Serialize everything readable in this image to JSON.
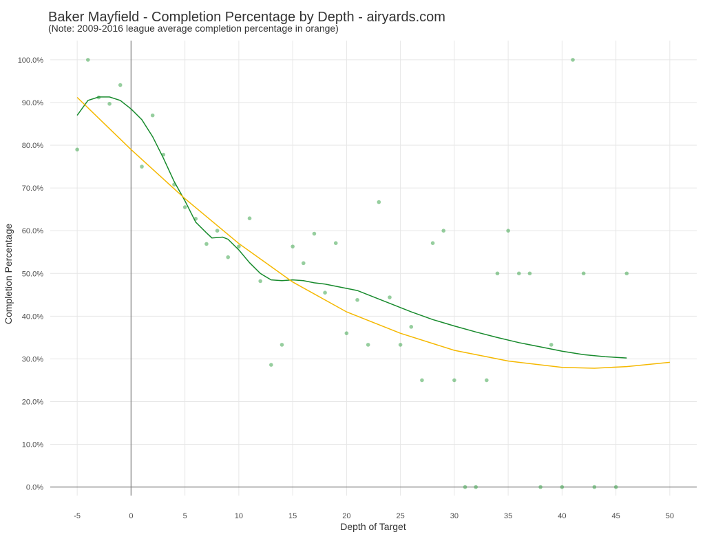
{
  "chart_data": {
    "type": "scatter",
    "title": "Baker Mayfield - Completion Percentage by Depth - airyards.com",
    "subtitle": "(Note: 2009-2016 league average completion percentage in orange)",
    "x_label": "Depth of Target",
    "y_label": "Completion Percentage",
    "xlim": [
      -7.5,
      52.5
    ],
    "ylim": [
      -2,
      104.5
    ],
    "xticks": [
      -5,
      0,
      5,
      10,
      15,
      20,
      25,
      30,
      35,
      40,
      45,
      50
    ],
    "yticks": [
      {
        "value": 0,
        "label": "0.0%"
      },
      {
        "value": 10,
        "label": "10.0%"
      },
      {
        "value": 20,
        "label": "20.0%"
      },
      {
        "value": 30,
        "label": "30.0%"
      },
      {
        "value": 40,
        "label": "40.0%"
      },
      {
        "value": 50,
        "label": "50.0%"
      },
      {
        "value": 60,
        "label": "60.0%"
      },
      {
        "value": 70,
        "label": "70.0%"
      },
      {
        "value": 80,
        "label": "80.0%"
      },
      {
        "value": 90,
        "label": "90.0%"
      },
      {
        "value": 100,
        "label": "100.0%"
      }
    ],
    "grid": true,
    "vline": 0,
    "hline": 0,
    "series": [
      {
        "kind": "points",
        "color": "#2e9e3e",
        "x": [
          -5,
          -4,
          -3,
          -2,
          -1,
          1,
          2,
          3,
          4,
          5,
          6,
          7,
          8,
          9,
          10,
          11,
          12,
          13,
          14,
          15,
          16,
          17,
          18,
          19,
          20,
          21,
          22,
          23,
          24,
          25,
          26,
          27,
          28,
          29,
          30,
          31,
          32,
          33,
          34,
          35,
          36,
          37,
          38,
          39,
          40,
          41,
          42,
          43,
          45,
          46
        ],
        "values": [
          79,
          100,
          91.2,
          89.7,
          94.1,
          75,
          87,
          77.8,
          70.8,
          65.5,
          62.8,
          56.9,
          60,
          53.8,
          56.3,
          62.9,
          48.2,
          28.6,
          33.3,
          56.3,
          52.4,
          59.3,
          45.5,
          57.1,
          36,
          43.8,
          33.3,
          66.7,
          44.4,
          33.3,
          37.5,
          25,
          57.1,
          60,
          25,
          0,
          0,
          25,
          50,
          60,
          50,
          50,
          0,
          33.3,
          0,
          100,
          50,
          0,
          0,
          50
        ]
      },
      {
        "kind": "line",
        "color": "#178a2c",
        "x": [
          -5,
          -4,
          -3,
          -2,
          -1,
          0,
          1,
          2,
          3,
          4,
          5,
          6,
          7,
          7.5,
          8.5,
          9,
          10,
          11,
          12,
          13,
          14,
          15,
          16,
          17,
          18,
          19,
          20,
          21,
          22,
          24,
          26,
          28,
          30,
          32,
          34,
          36,
          38,
          40,
          42,
          44,
          46
        ],
        "values": [
          87,
          90.5,
          91.3,
          91.3,
          90.5,
          88.5,
          86,
          82,
          77,
          71.5,
          67,
          62,
          59.5,
          58.3,
          58.5,
          58,
          55.5,
          52.5,
          50,
          48.5,
          48.3,
          48.5,
          48.3,
          47.8,
          47.5,
          47,
          46.5,
          46,
          45,
          43,
          41,
          39.2,
          37.7,
          36.3,
          35,
          33.8,
          32.8,
          31.8,
          31,
          30.5,
          30.2
        ]
      },
      {
        "kind": "line",
        "color": "#f5b800",
        "x": [
          -5,
          0,
          5,
          10,
          15,
          20,
          25,
          30,
          35,
          40,
          43,
          46,
          50
        ],
        "values": [
          91.2,
          79,
          67.5,
          57,
          48,
          41,
          36,
          32,
          29.5,
          28,
          27.8,
          28.2,
          29.2
        ]
      }
    ]
  }
}
